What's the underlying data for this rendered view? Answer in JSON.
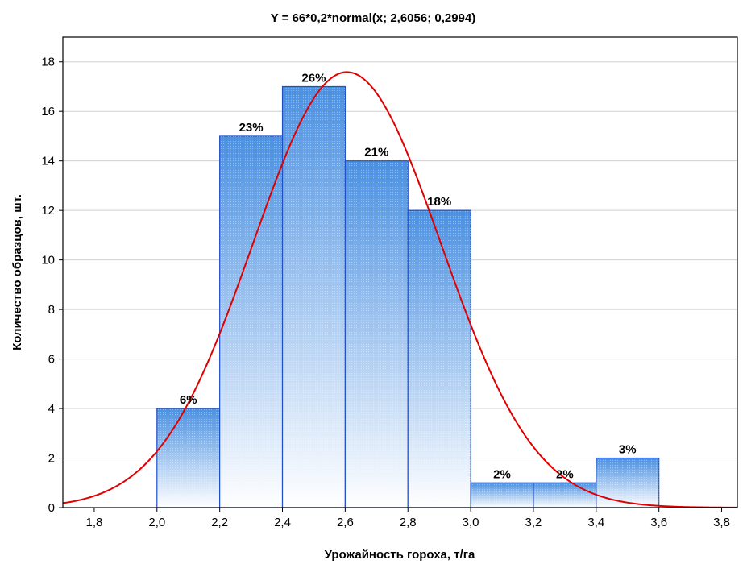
{
  "chart_data": {
    "type": "bar",
    "title": "Y = 66*0,2*normal(x; 2,6056; 0,2994)",
    "xlabel": "Урожайность гороха, т/га",
    "ylabel": "Количество образцов, шт.",
    "xlim": [
      1.7,
      3.85
    ],
    "ylim": [
      0,
      19
    ],
    "x_ticks": [
      "1,8",
      "2,0",
      "2,2",
      "2,4",
      "2,6",
      "2,8",
      "3,0",
      "3,2",
      "3,4",
      "3,6",
      "3,8"
    ],
    "x_tick_values": [
      1.8,
      2.0,
      2.2,
      2.4,
      2.6,
      2.8,
      3.0,
      3.2,
      3.4,
      3.6,
      3.8
    ],
    "y_ticks": [
      "0",
      "2",
      "4",
      "6",
      "8",
      "10",
      "12",
      "14",
      "16",
      "18"
    ],
    "y_tick_values": [
      0,
      2,
      4,
      6,
      8,
      10,
      12,
      14,
      16,
      18
    ],
    "grid": true,
    "bins": [
      {
        "from": 2.0,
        "to": 2.2,
        "value": 4,
        "label": "6%"
      },
      {
        "from": 2.2,
        "to": 2.4,
        "value": 15,
        "label": "23%"
      },
      {
        "from": 2.4,
        "to": 2.6,
        "value": 17,
        "label": "26%"
      },
      {
        "from": 2.6,
        "to": 2.8,
        "value": 14,
        "label": "21%"
      },
      {
        "from": 2.8,
        "to": 3.0,
        "value": 12,
        "label": "18%"
      },
      {
        "from": 3.0,
        "to": 3.2,
        "value": 1,
        "label": "2%"
      },
      {
        "from": 3.2,
        "to": 3.4,
        "value": 1,
        "label": "2%"
      },
      {
        "from": 3.4,
        "to": 3.6,
        "value": 2,
        "label": "3%"
      }
    ],
    "fit_curve": {
      "type": "normal",
      "n": 66,
      "bin_width": 0.2,
      "mean": 2.6056,
      "sd": 0.2994,
      "color": "#e00000"
    },
    "bar_colors": {
      "top": "#4a90e2",
      "bottom": "#ffffff",
      "edge": "#1f4fc7"
    }
  }
}
